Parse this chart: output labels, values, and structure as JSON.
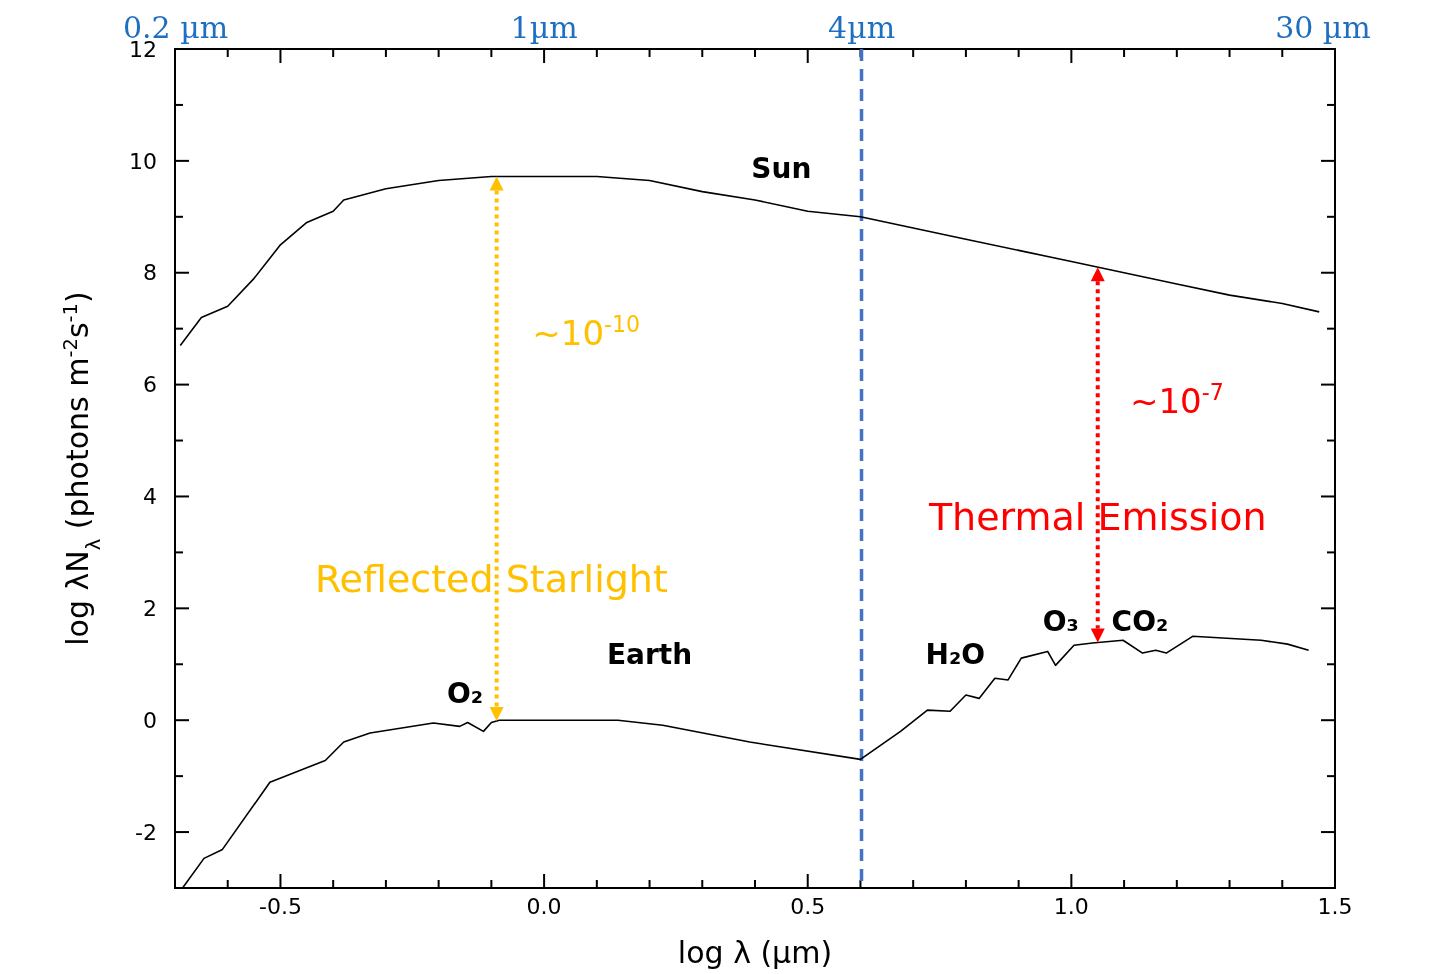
{
  "chart_data": {
    "type": "line",
    "xlabel": "log λ (µm)",
    "ylabel": "log λN$_{λ}$ (photons m$^{-2}$s$^{-1}$)",
    "xlim": [
      -0.7,
      1.5
    ],
    "ylim": [
      -3,
      12
    ],
    "xticks": [
      {
        "value": -0.6,
        "label": null
      },
      -0.5,
      {
        "value": -0.4,
        "label": null
      },
      {
        "value": -0.3,
        "label": null
      },
      {
        "value": -0.2,
        "label": null
      },
      {
        "value": -0.1,
        "label": null
      },
      {
        "value": 0,
        "label": "0.0"
      },
      {
        "value": 0.1,
        "label": null
      },
      {
        "value": 0.2,
        "label": null
      },
      {
        "value": 0.3,
        "label": null
      },
      {
        "value": 0.4,
        "label": null
      },
      {
        "value": 0.5,
        "label": "0.5"
      },
      {
        "value": 0.6,
        "label": null
      },
      {
        "value": 0.7,
        "label": null
      },
      {
        "value": 0.8,
        "label": null
      },
      {
        "value": 0.9,
        "label": null
      },
      {
        "value": 1,
        "label": "1.0"
      },
      {
        "value": 1.1,
        "label": null
      },
      {
        "value": 1.2,
        "label": null
      },
      {
        "value": 1.3,
        "label": null
      },
      {
        "value": 1.4,
        "label": null
      },
      {
        "value": 1.5,
        "label": "1.5"
      }
    ],
    "yticks": [
      -2,
      {
        "value": -1,
        "label": null
      },
      0,
      {
        "value": 1,
        "label": null
      },
      2,
      {
        "value": 3,
        "label": null
      },
      4,
      {
        "value": 5,
        "label": null
      },
      6,
      {
        "value": 7,
        "label": null
      },
      8,
      {
        "value": 9,
        "label": null
      },
      10,
      {
        "value": 11,
        "label": null
      },
      12
    ],
    "x2lim": [
      0.1995,
      31.62
    ],
    "log": "x2",
    "x2ticks": [
      {
        "value": 0.2,
        "label": "0.2 µm"
      },
      {
        "value": 1,
        "label": "1µm"
      },
      {
        "value": 4,
        "label": "4µm"
      },
      {
        "value": 30,
        "label": "30 µm"
      }
    ],
    "grid": false,
    "line_style": "solid",
    "marker": "none",
    "series": [
      {
        "color": "#000000",
        "x": [
          -0.69,
          -0.65,
          -0.6,
          -0.55,
          -0.5,
          -0.45,
          -0.4,
          -0.38,
          -0.3,
          -0.2,
          -0.1,
          0,
          0.1,
          0.2,
          0.3,
          0.4,
          0.5,
          0.6,
          0.7,
          0.8,
          0.9,
          1,
          1.1,
          1.2,
          1.3,
          1.4,
          1.47
        ],
        "values": [
          6.7,
          7.2,
          7.4,
          7.9,
          8.5,
          8.9,
          9.1,
          9.3,
          9.5,
          9.65,
          9.72,
          9.72,
          9.72,
          9.65,
          9.45,
          9.3,
          9.1,
          9.0,
          8.8,
          8.6,
          8.4,
          8.2,
          8.0,
          7.8,
          7.6,
          7.45,
          7.3
        ]
      },
      {
        "color": "#000000",
        "x": [
          -0.685,
          -0.645,
          -0.61,
          -0.52,
          -0.415,
          -0.38,
          -0.33,
          -0.21,
          -0.16,
          -0.145,
          -0.115,
          -0.1,
          -0.085,
          0.14,
          0.225,
          0.39,
          0.6,
          0.676,
          0.727,
          0.77,
          0.8,
          0.825,
          0.855,
          0.88,
          0.905,
          0.955,
          0.97,
          1.005,
          1.04,
          1.098,
          1.135,
          1.16,
          1.18,
          1.23,
          1.36,
          1.41,
          1.45
        ],
        "values": [
          -2.99,
          -2.47,
          -2.31,
          -1.11,
          -0.72,
          -0.39,
          -0.23,
          -0.05,
          -0.11,
          -0.04,
          -0.2,
          -0.04,
          0,
          0,
          -0.09,
          -0.39,
          -0.7,
          -0.2,
          0.18,
          0.16,
          0.45,
          0.39,
          0.75,
          0.72,
          1.11,
          1.23,
          0.98,
          1.34,
          1.38,
          1.43,
          1.2,
          1.25,
          1.2,
          1.5,
          1.43,
          1.36,
          1.25
        ]
      }
    ],
    "ref_lines": [
      {
        "axis": "x",
        "value": 0.602,
        "color": "#4472c4",
        "line_style": "dashed"
      }
    ],
    "annotations": [
      "Sun",
      "Earth",
      "O₂",
      "H₂O",
      "O₃",
      "CO₂",
      "~10$^{-10}$",
      "~10$^{-7}$",
      "Reflected Starlight",
      "Thermal Emission"
    ]
  }
}
